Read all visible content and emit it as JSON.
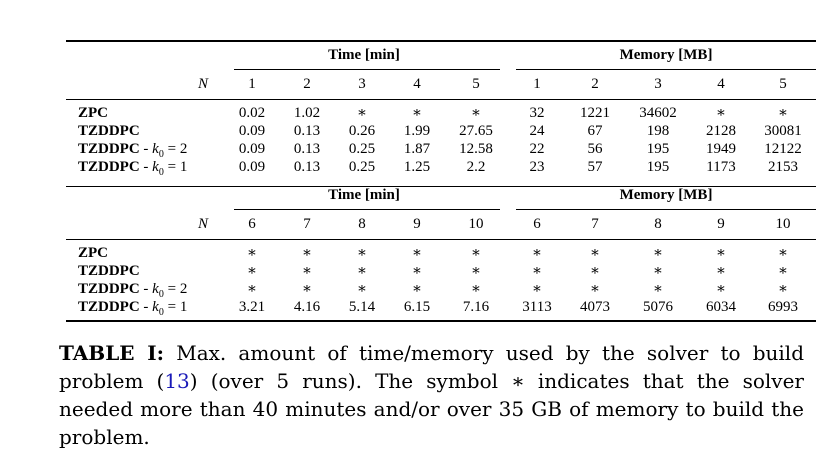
{
  "table": {
    "n_label": "N",
    "time_header": "Time [min]",
    "memory_header": "Memory [MB]",
    "blocks": [
      {
        "n_values": [
          "1",
          "2",
          "3",
          "4",
          "5"
        ],
        "mem_n_values": [
          "1",
          "2",
          "3",
          "4",
          "5"
        ],
        "rows": [
          {
            "label": "ZPC",
            "k0": "",
            "time": [
              "0.02",
              "1.02",
              "∗",
              "∗",
              "∗"
            ],
            "memory": [
              "32",
              "1221",
              "34602",
              "∗",
              "∗"
            ]
          },
          {
            "label": "TZDDPC",
            "k0": "",
            "time": [
              "0.09",
              "0.13",
              "0.26",
              "1.99",
              "27.65"
            ],
            "memory": [
              "24",
              "67",
              "198",
              "2128",
              "30081"
            ]
          },
          {
            "label": "TZDDPC",
            "k0": "2",
            "time": [
              "0.09",
              "0.13",
              "0.25",
              "1.87",
              "12.58"
            ],
            "memory": [
              "22",
              "56",
              "195",
              "1949",
              "12122"
            ]
          },
          {
            "label": "TZDDPC",
            "k0": "1",
            "time": [
              "0.09",
              "0.13",
              "0.25",
              "1.25",
              "2.2"
            ],
            "memory": [
              "23",
              "57",
              "195",
              "1173",
              "2153"
            ]
          }
        ]
      },
      {
        "n_values": [
          "6",
          "7",
          "8",
          "9",
          "10"
        ],
        "mem_n_values": [
          "6",
          "7",
          "8",
          "9",
          "10"
        ],
        "rows": [
          {
            "label": "ZPC",
            "k0": "",
            "time": [
              "∗",
              "∗",
              "∗",
              "∗",
              "∗"
            ],
            "memory": [
              "∗",
              "∗",
              "∗",
              "∗",
              "∗"
            ]
          },
          {
            "label": "TZDDPC",
            "k0": "",
            "time": [
              "∗",
              "∗",
              "∗",
              "∗",
              "∗"
            ],
            "memory": [
              "∗",
              "∗",
              "∗",
              "∗",
              "∗"
            ]
          },
          {
            "label": "TZDDPC",
            "k0": "2",
            "time": [
              "∗",
              "∗",
              "∗",
              "∗",
              "∗"
            ],
            "memory": [
              "∗",
              "∗",
              "∗",
              "∗",
              "∗"
            ]
          },
          {
            "label": "TZDDPC",
            "k0": "1",
            "time": [
              "3.21",
              "4.16",
              "5.14",
              "6.15",
              "7.16"
            ],
            "memory": [
              "3113",
              "4073",
              "5076",
              "6034",
              "6993"
            ]
          }
        ]
      }
    ]
  },
  "caption": {
    "label": "TABLE I:",
    "text_before_ref": " Max. amount of time/memory used by the solver to build problem (",
    "ref": "13",
    "text_after_ref": ") (over 5 runs). The symbol ∗ indicates that the solver needed more than 40 minutes and/or over 35 GB of memory to build the problem."
  },
  "k0_text": {
    "sep": " - ",
    "k": "k",
    "sub": "0",
    "eq": " = "
  }
}
